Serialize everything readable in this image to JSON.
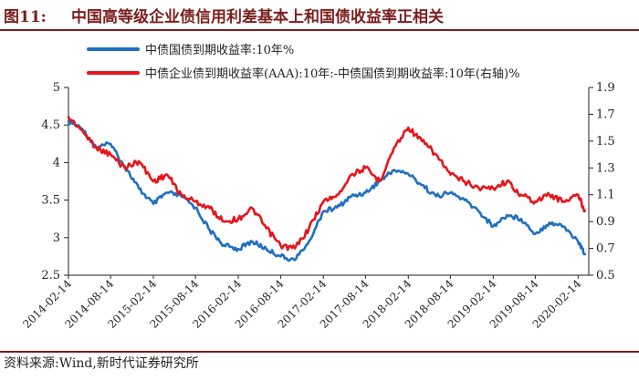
{
  "header": {
    "fig_label": "图11:",
    "title": "中国高等级企业债信用利差基本上和国债收益率正相关"
  },
  "footer": {
    "source": "资料来源:Wind,新时代证券研究所"
  },
  "colors": {
    "series1": "#1f6fc1",
    "series2": "#e8141b",
    "accent": "#7a1e1e"
  },
  "chart_data": {
    "type": "line",
    "title": "",
    "x_type": "date",
    "x_ticks": [
      "2014-02-14",
      "2014-08-14",
      "2015-02-14",
      "2015-08-14",
      "2016-02-14",
      "2016-08-14",
      "2017-02-14",
      "2017-08-14",
      "2018-02-14",
      "2018-08-14",
      "2019-02-14",
      "2019-08-14",
      "2020-02-14"
    ],
    "y_left": {
      "ylim": [
        2.5,
        5
      ],
      "ticks": [
        "2.5",
        "3",
        "3.5",
        "4",
        "4.5",
        "5"
      ]
    },
    "y_right": {
      "ylim": [
        0.5,
        1.9
      ],
      "ticks": [
        "0.5",
        "0.7",
        "0.9",
        "1.1",
        "1.3",
        "1.5",
        "1.7",
        "1.9"
      ]
    },
    "grid": false,
    "legend_position": "top-left",
    "series": [
      {
        "name": "中债国债到期收益率:10年%",
        "axis": "left",
        "x": [
          "2014-02-14",
          "2014-04-14",
          "2014-06-14",
          "2014-08-14",
          "2014-10-14",
          "2014-12-14",
          "2015-02-14",
          "2015-04-14",
          "2015-06-14",
          "2015-08-14",
          "2015-10-14",
          "2015-12-14",
          "2016-02-14",
          "2016-04-14",
          "2016-06-14",
          "2016-08-14",
          "2016-10-14",
          "2016-12-14",
          "2017-02-14",
          "2017-04-14",
          "2017-06-14",
          "2017-08-14",
          "2017-10-14",
          "2017-12-14",
          "2018-02-14",
          "2018-04-14",
          "2018-06-14",
          "2018-08-14",
          "2018-10-14",
          "2018-12-14",
          "2019-02-14",
          "2019-04-14",
          "2019-06-14",
          "2019-08-14",
          "2019-10-14",
          "2019-12-14",
          "2020-02-14",
          "2020-03-14"
        ],
        "values": [
          4.55,
          4.45,
          4.2,
          4.25,
          3.95,
          3.65,
          3.45,
          3.6,
          3.55,
          3.4,
          3.1,
          2.9,
          2.85,
          2.95,
          2.85,
          2.75,
          2.7,
          2.95,
          3.35,
          3.4,
          3.55,
          3.6,
          3.75,
          3.9,
          3.85,
          3.7,
          3.55,
          3.6,
          3.5,
          3.35,
          3.15,
          3.3,
          3.25,
          3.05,
          3.2,
          3.15,
          2.95,
          2.78
        ]
      },
      {
        "name": "中债企业债到期收益率(AAA):10年:-中债国债到期收益率:10年(右轴)%",
        "axis": "right",
        "x": [
          "2014-02-14",
          "2014-04-14",
          "2014-06-14",
          "2014-08-14",
          "2014-10-14",
          "2014-12-14",
          "2015-02-14",
          "2015-04-14",
          "2015-06-14",
          "2015-08-14",
          "2015-10-14",
          "2015-12-14",
          "2016-02-14",
          "2016-04-14",
          "2016-06-14",
          "2016-08-14",
          "2016-10-14",
          "2016-12-14",
          "2017-02-14",
          "2017-04-14",
          "2017-06-14",
          "2017-08-14",
          "2017-10-14",
          "2017-12-14",
          "2018-02-14",
          "2018-04-14",
          "2018-06-14",
          "2018-08-14",
          "2018-10-14",
          "2018-12-14",
          "2019-02-14",
          "2019-04-14",
          "2019-06-14",
          "2019-08-14",
          "2019-10-14",
          "2019-12-14",
          "2020-02-14",
          "2020-03-14"
        ],
        "values": [
          1.68,
          1.58,
          1.45,
          1.4,
          1.3,
          1.35,
          1.2,
          1.25,
          1.1,
          1.05,
          1.0,
          0.9,
          0.92,
          1.0,
          0.85,
          0.72,
          0.7,
          0.85,
          1.05,
          1.1,
          1.25,
          1.3,
          1.2,
          1.45,
          1.6,
          1.5,
          1.4,
          1.25,
          1.2,
          1.15,
          1.15,
          1.2,
          1.1,
          1.05,
          1.1,
          1.05,
          1.1,
          0.98
        ]
      }
    ]
  }
}
